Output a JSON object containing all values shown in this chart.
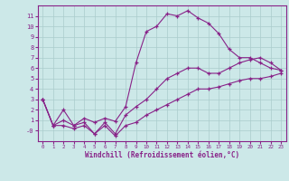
{
  "xlabel": "Windchill (Refroidissement éolien,°C)",
  "xlim": [
    -0.5,
    23.5
  ],
  "ylim": [
    -1,
    12
  ],
  "background_color": "#cce8e8",
  "grid_color": "#aacccc",
  "line_color": "#882288",
  "line1_x": [
    0,
    1,
    2,
    3,
    4,
    5,
    6,
    7,
    8,
    9,
    10,
    11,
    12,
    13,
    14,
    15,
    16,
    17,
    18,
    19,
    20,
    21,
    22,
    23
  ],
  "line1_y": [
    3.0,
    0.5,
    2.0,
    0.5,
    1.2,
    0.8,
    1.2,
    0.9,
    2.3,
    6.5,
    9.5,
    10.0,
    11.2,
    11.0,
    11.5,
    10.8,
    10.3,
    9.3,
    7.8,
    7.0,
    7.0,
    6.5,
    6.0,
    5.8
  ],
  "line2_x": [
    0,
    1,
    2,
    3,
    4,
    5,
    6,
    7,
    8,
    9,
    10,
    11,
    12,
    13,
    14,
    15,
    16,
    17,
    18,
    19,
    20,
    21,
    22,
    23
  ],
  "line2_y": [
    3.0,
    0.5,
    1.0,
    0.5,
    0.8,
    -0.3,
    0.8,
    -0.3,
    1.5,
    2.3,
    3.0,
    4.0,
    5.0,
    5.5,
    6.0,
    6.0,
    5.5,
    5.5,
    6.0,
    6.5,
    6.8,
    7.0,
    6.5,
    5.8
  ],
  "line3_x": [
    0,
    1,
    2,
    3,
    4,
    5,
    6,
    7,
    8,
    9,
    10,
    11,
    12,
    13,
    14,
    15,
    16,
    17,
    18,
    19,
    20,
    21,
    22,
    23
  ],
  "line3_y": [
    3.0,
    0.5,
    0.5,
    0.2,
    0.5,
    -0.3,
    0.5,
    -0.5,
    0.5,
    0.8,
    1.5,
    2.0,
    2.5,
    3.0,
    3.5,
    4.0,
    4.0,
    4.2,
    4.5,
    4.8,
    5.0,
    5.0,
    5.2,
    5.5
  ],
  "xticks": [
    0,
    1,
    2,
    3,
    4,
    5,
    6,
    7,
    8,
    9,
    10,
    11,
    12,
    13,
    14,
    15,
    16,
    17,
    18,
    19,
    20,
    21,
    22,
    23
  ],
  "yticks": [
    0,
    1,
    2,
    3,
    4,
    5,
    6,
    7,
    8,
    9,
    10,
    11
  ],
  "ytick_labels": [
    "-0",
    "1",
    "2",
    "3",
    "4",
    "5",
    "6",
    "7",
    "8",
    "9",
    "10",
    "11"
  ],
  "marker": "+",
  "xlabel_fontsize": 5.5,
  "tick_fontsize_x": 4.2,
  "tick_fontsize_y": 5.0
}
